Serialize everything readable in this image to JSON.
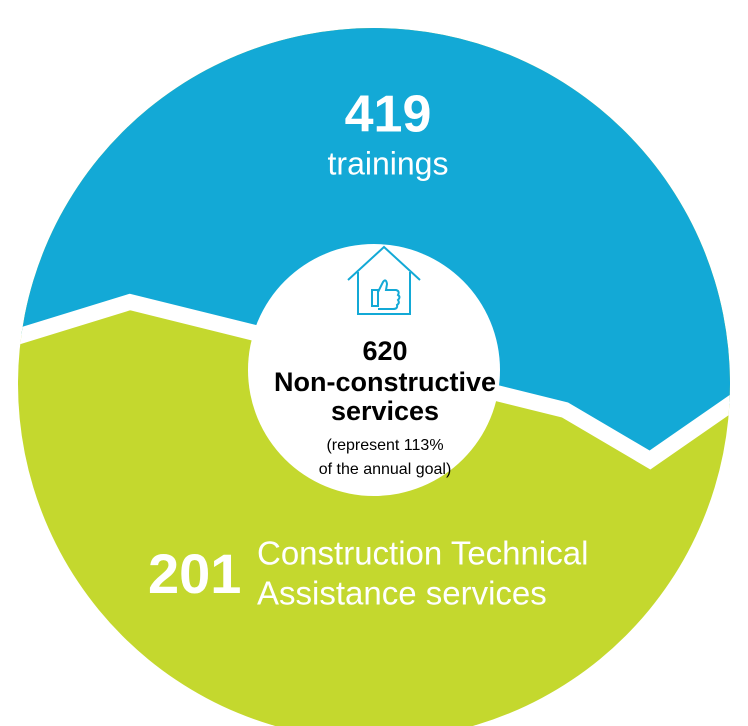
{
  "center": {
    "count": 620,
    "label_lines": [
      "Non-constructive",
      "services"
    ],
    "note_lines": [
      "(represent 113%",
      "of the annual goal)"
    ]
  },
  "segments": [
    {
      "count": 419,
      "label_lines": [
        "trainings"
      ]
    },
    {
      "count": 201,
      "label_lines": [
        "Construction Technical",
        "Assistance services"
      ]
    }
  ]
}
